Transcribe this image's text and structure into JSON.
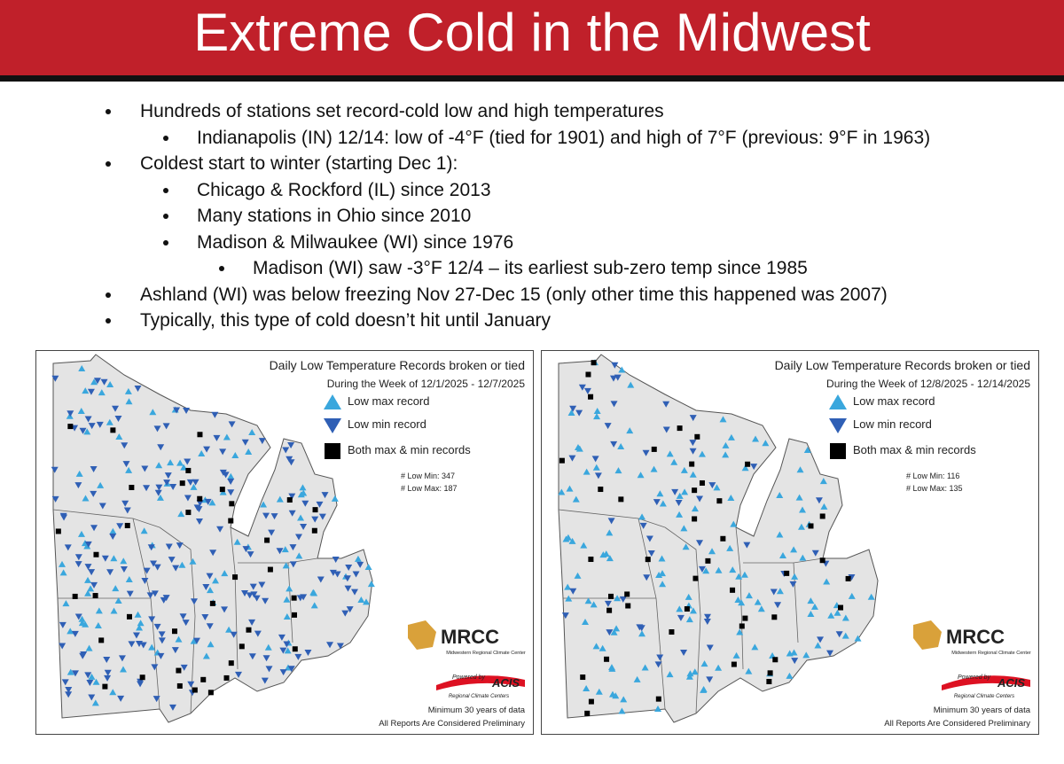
{
  "header": {
    "title": "Extreme Cold in the Midwest"
  },
  "bullets": [
    {
      "text": "Hundreds of stations set record-cold low and high temperatures",
      "items": [
        {
          "text": "Indianapolis (IN) 12/14: low of -4°F (tied for 1901) and high of 7°F (previous: 9°F in 1963)"
        }
      ]
    },
    {
      "text": "Coldest start to winter (starting Dec 1):",
      "items": [
        {
          "text": "Chicago & Rockford (IL) since 2013"
        },
        {
          "text": "Many stations in Ohio since 2010"
        },
        {
          "text": "Madison & Milwaukee (WI) since 1976",
          "items": [
            {
              "text": "Madison (WI) saw -3°F 12/4 – its earliest sub-zero temp since 1985"
            }
          ]
        }
      ]
    },
    {
      "text": "Ashland (WI) was below freezing Nov 27-Dec 15 (only other time this happened was 2007)"
    },
    {
      "text": "Typically, this type of cold doesn’t hit until January"
    }
  ],
  "maps": [
    {
      "title": "Daily Low Temperature Records broken or tied",
      "subtitle": "During the Week of 12/1/2025 - 12/7/2025",
      "legend": [
        "Low max record",
        "Low min record",
        "Both max & min records"
      ],
      "counts": [
        "# Low Min: 347",
        "# Low Max: 187"
      ],
      "logo": {
        "name": "MRCC",
        "org": "Midwestern Regional Climate Center",
        "powered": "Powered by",
        "acis": "ACIS",
        "rcc": "Regional Climate Centers"
      },
      "footer": [
        "Minimum 30 years of data",
        "All Reports Are Considered Preliminary"
      ]
    },
    {
      "title": "Daily Low Temperature Records broken or tied",
      "subtitle": "During the Week of 12/8/2025 - 12/14/2025",
      "legend": [
        "Low max record",
        "Low min record",
        "Both max & min records"
      ],
      "counts": [
        "# Low Min: 116",
        "# Low Max: 135"
      ],
      "logo": {
        "name": "MRCC",
        "org": "Midwestern Regional Climate Center",
        "powered": "Powered by",
        "acis": "ACIS",
        "rcc": "Regional Climate Centers"
      },
      "footer": [
        "Minimum 30 years of data",
        "All Reports Are Considered Preliminary"
      ]
    }
  ]
}
